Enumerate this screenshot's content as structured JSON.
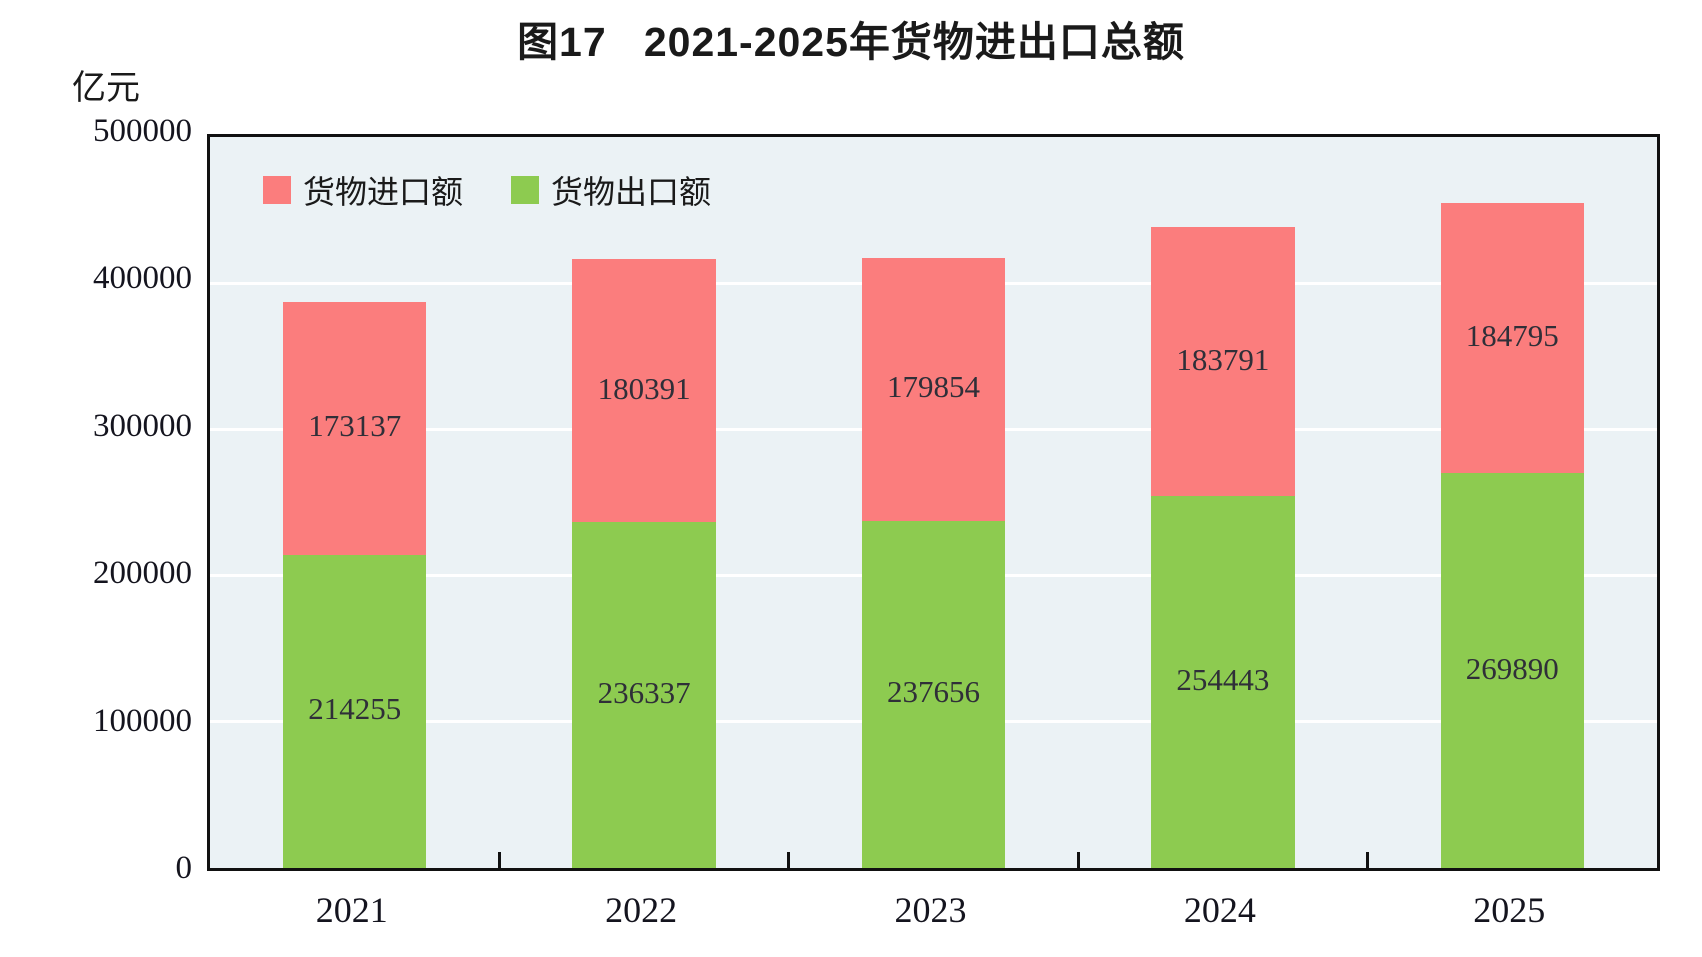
{
  "title": "图17   2021-2025年货物进出口总额",
  "unit_label": "亿元",
  "colors": {
    "import_bar": "#FB7D7D",
    "export_bar": "#8DCB50",
    "plot_background": "#EBF2F5",
    "gridline": "#FFFFFF",
    "axis": "#111111",
    "bar_label_text": "#2F2F38"
  },
  "legend": {
    "items": [
      {
        "label": "货物进口额",
        "series": "import"
      },
      {
        "label": "货物出口额",
        "series": "export"
      }
    ]
  },
  "chart_data": {
    "type": "bar",
    "stacked": true,
    "title": "图17   2021-2025年货物进出口总额",
    "ylabel": "亿元",
    "xlabel": "",
    "categories": [
      "2021",
      "2022",
      "2023",
      "2024",
      "2025"
    ],
    "series": [
      {
        "name": "货物出口额",
        "role": "export",
        "color": "#8DCB50",
        "values": [
          214255,
          236337,
          237656,
          254443,
          269890
        ]
      },
      {
        "name": "货物进口额",
        "role": "import",
        "color": "#FB7D7D",
        "values": [
          173137,
          180391,
          179854,
          183791,
          184795
        ]
      }
    ],
    "totals": [
      387392,
      416728,
      417510,
      438234,
      454685
    ],
    "ylim": [
      0,
      500000
    ],
    "ytick_step": 100000,
    "ytick_labels": [
      "0",
      "100000",
      "200000",
      "300000",
      "400000",
      "500000"
    ],
    "grid": true,
    "legend_position": "top-left"
  }
}
